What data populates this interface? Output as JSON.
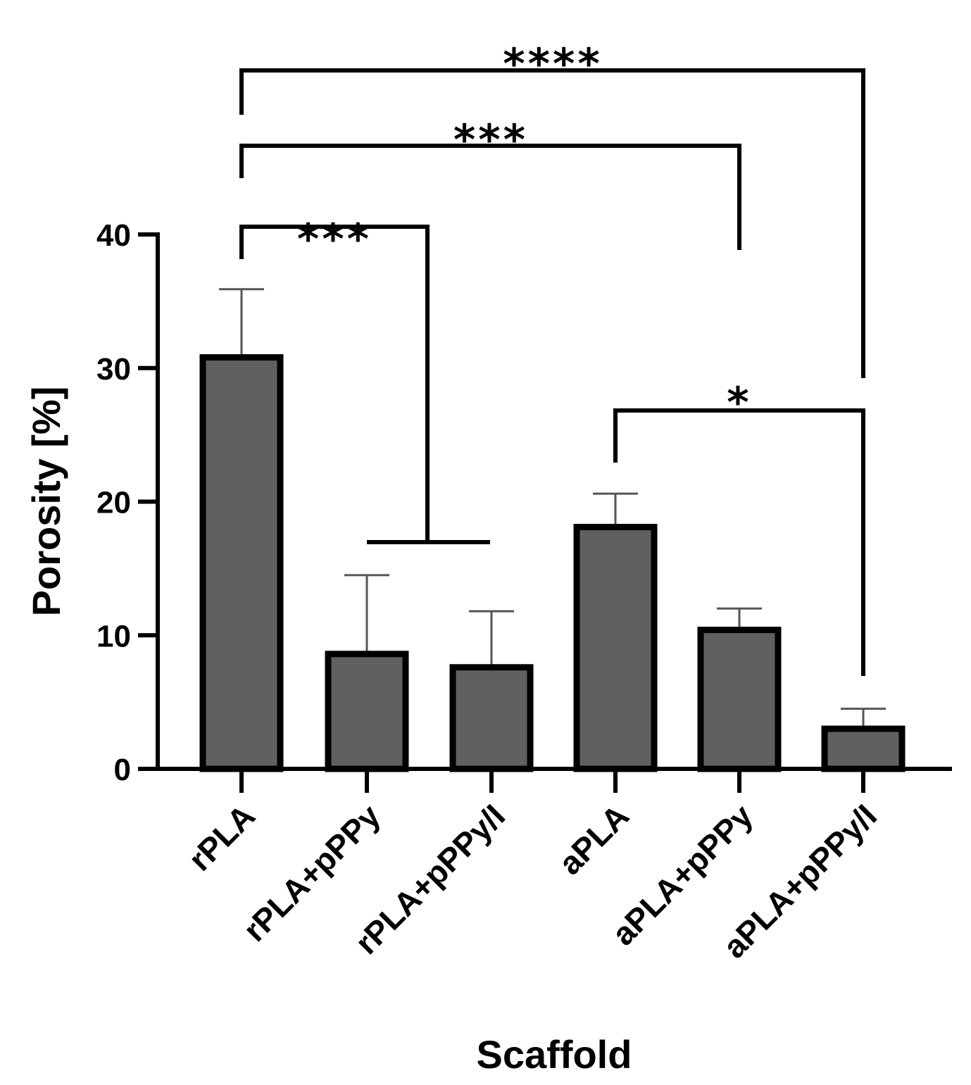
{
  "chart_data": {
    "type": "bar",
    "xlabel": "Scaffold",
    "ylabel": "Porosity [%]",
    "ylim": [
      0,
      40
    ],
    "yticks": [
      0,
      10,
      20,
      30,
      40
    ],
    "categories": [
      "rPLA",
      "rPLA+pPPy",
      "rPLA+pPPy/I",
      "aPLA",
      "aPLA+pPPy",
      "aPLA+pPPy/I"
    ],
    "values": [
      30.8,
      8.6,
      7.6,
      18.1,
      10.4,
      3.0
    ],
    "errors": [
      5.1,
      5.9,
      4.2,
      2.5,
      1.6,
      1.5
    ],
    "bar_color": "#606060",
    "significance": [
      {
        "from": 0,
        "to": [
          1,
          2
        ],
        "label": "***"
      },
      {
        "from": 0,
        "to": [
          4
        ],
        "label": "***"
      },
      {
        "from": 0,
        "to": [
          5
        ],
        "label": "****"
      },
      {
        "from": 3,
        "to": [
          5
        ],
        "label": "*"
      }
    ]
  }
}
